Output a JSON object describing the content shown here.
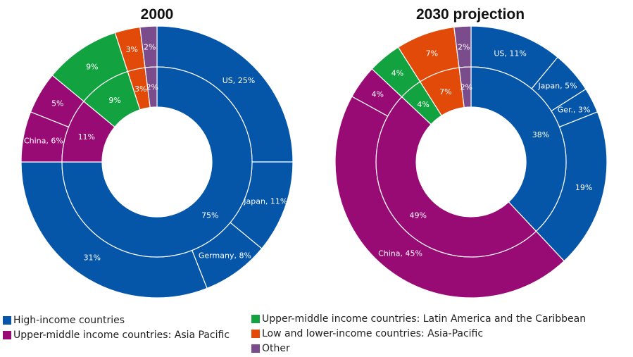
{
  "colors": {
    "high": "#0556a8",
    "umAsia": "#980a74",
    "umLatin": "#12a340",
    "low": "#e14a09",
    "other": "#7b4c8c"
  },
  "legend": [
    {
      "label": "High-income countries",
      "color": "#0556a8"
    },
    {
      "label": "Upper-middle income countries: Asia Pacific",
      "color": "#980a74"
    },
    {
      "label": "Upper-middle income countries: Latin America and the Caribbean",
      "color": "#12a340"
    },
    {
      "label": "Low and lower-income countries: Asia-Pacific",
      "color": "#e14a09"
    },
    {
      "label": "Other",
      "color": "#7b4c8c"
    }
  ],
  "chart_data": [
    {
      "type": "pie",
      "title": "2000",
      "inner_ring": [
        {
          "group": "high",
          "value": 75,
          "label": "75%"
        },
        {
          "group": "umAsia",
          "value": 11,
          "label": "11%"
        },
        {
          "group": "umLatin",
          "value": 9,
          "label": "9%"
        },
        {
          "group": "low",
          "value": 3,
          "label": "3%"
        },
        {
          "group": "other",
          "value": 2,
          "label": "2%"
        }
      ],
      "outer_ring": [
        {
          "group": "high",
          "value": 25,
          "label": "US, 25%"
        },
        {
          "group": "high",
          "value": 11,
          "label": "Japan, 11%"
        },
        {
          "group": "high",
          "value": 8,
          "label": "Germany, 8%"
        },
        {
          "group": "high",
          "value": 31,
          "label": "31%"
        },
        {
          "group": "umAsia",
          "value": 6,
          "label": "China, 6%"
        },
        {
          "group": "umAsia",
          "value": 5,
          "label": "5%"
        },
        {
          "group": "umLatin",
          "value": 9,
          "label": "9%"
        },
        {
          "group": "low",
          "value": 3,
          "label": "3%"
        },
        {
          "group": "other",
          "value": 2,
          "label": "2%"
        }
      ]
    },
    {
      "type": "pie",
      "title": "2030 projection",
      "inner_ring": [
        {
          "group": "high",
          "value": 38,
          "label": "38%"
        },
        {
          "group": "umAsia",
          "value": 49,
          "label": "49%"
        },
        {
          "group": "umLatin",
          "value": 4,
          "label": "4%"
        },
        {
          "group": "low",
          "value": 7,
          "label": "7%"
        },
        {
          "group": "other",
          "value": 2,
          "label": "2%"
        }
      ],
      "outer_ring": [
        {
          "group": "high",
          "value": 11,
          "label": "US, 11%"
        },
        {
          "group": "high",
          "value": 5,
          "label": "Japan, 5%"
        },
        {
          "group": "high",
          "value": 3,
          "label": "Ger., 3%"
        },
        {
          "group": "high",
          "value": 19,
          "label": "19%"
        },
        {
          "group": "umAsia",
          "value": 45,
          "label": "China, 45%"
        },
        {
          "group": "umAsia",
          "value": 4,
          "label": "4%"
        },
        {
          "group": "umLatin",
          "value": 4,
          "label": "4%"
        },
        {
          "group": "low",
          "value": 7,
          "label": "7%"
        },
        {
          "group": "other",
          "value": 2,
          "label": "2%"
        }
      ]
    }
  ]
}
